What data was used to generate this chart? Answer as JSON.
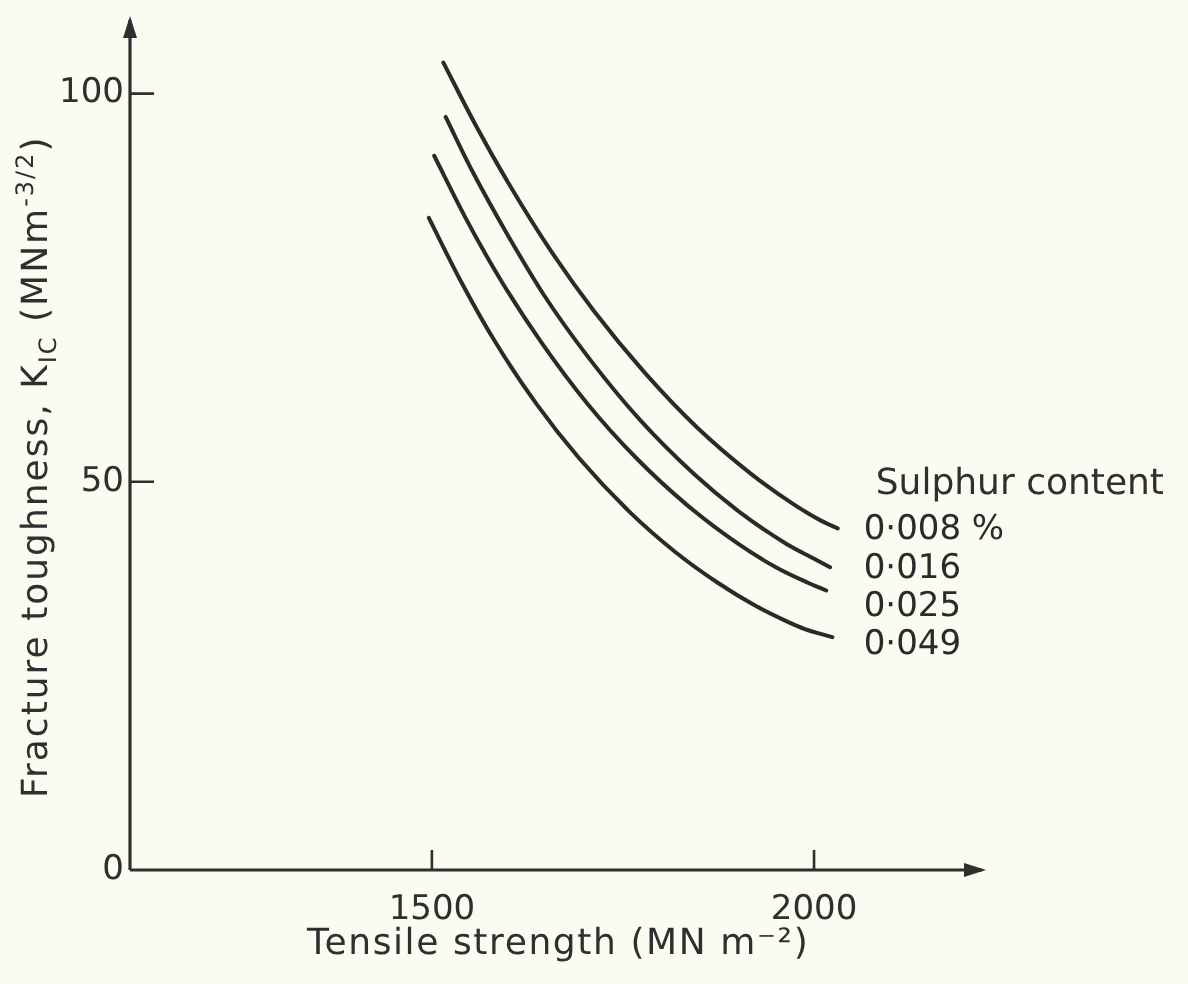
{
  "chart_data": {
    "type": "line",
    "xlabel": "Tensile strength (MN m⁻²)",
    "ylabel": "Fracture toughness, K$_{IC}$ (MNm$^{-3/2}$)",
    "legend_title": "Sulphur content",
    "xlim": [
      1105,
      2225
    ],
    "ylim": [
      0,
      110
    ],
    "xticks": [
      1500,
      2000
    ],
    "yticks": [
      0,
      50,
      100
    ],
    "grid": false,
    "legend": false,
    "series": [
      {
        "name": "0·008 %",
        "color": "#2a2a2a",
        "x": [
          1515,
          1557,
          1603,
          1654,
          1712,
          1779,
          1847,
          1918,
          1975,
          2009,
          2031
        ],
        "values": [
          104,
          96,
          88,
          80,
          72,
          64,
          57,
          51,
          47,
          45,
          44
        ]
      },
      {
        "name": "0·016",
        "color": "#2a2a2a",
        "x": [
          1518,
          1553,
          1598,
          1647,
          1705,
          1772,
          1843,
          1904,
          1964,
          2002,
          2021
        ],
        "values": [
          97,
          90,
          82,
          74,
          66,
          58,
          51,
          46,
          42,
          40,
          39
        ]
      },
      {
        "name": "0·025",
        "color": "#2a2a2a",
        "x": [
          1503,
          1544,
          1590,
          1643,
          1704,
          1768,
          1834,
          1901,
          1950,
          1992,
          2016
        ],
        "values": [
          92,
          84,
          76,
          68,
          60,
          53,
          47,
          42,
          39,
          37,
          36
        ]
      },
      {
        "name": "0·049",
        "color": "#2a2a2a",
        "x": [
          1496,
          1537,
          1583,
          1637,
          1693,
          1760,
          1818,
          1874,
          1924,
          1965,
          1989,
          2024
        ],
        "values": [
          84,
          76,
          68,
          60,
          53,
          46,
          41,
          37,
          34,
          32,
          31,
          30
        ]
      }
    ]
  }
}
